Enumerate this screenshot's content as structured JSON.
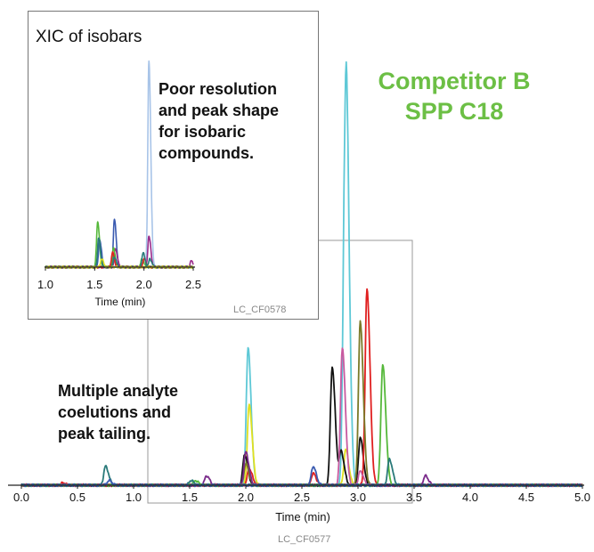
{
  "title": {
    "line1": "Competitor B",
    "line2": "SPP C18"
  },
  "annotation_main": {
    "lines": [
      "Multiple analyte",
      "coelutions and",
      "peak tailing."
    ]
  },
  "annotation_inset": {
    "lines": [
      "Poor resolution",
      "and peak shape",
      "for isobaric",
      "compounds."
    ]
  },
  "inset_title": "XIC of isobars",
  "inset_code": "LC_CF0578",
  "main_code": "LC_CF0577",
  "colors": {
    "accent": "#6cbf45"
  },
  "chart_data": [
    {
      "type": "line",
      "xlabel": "Time (min)",
      "xlim": [
        0,
        5.0
      ],
      "ylim": [
        0,
        100
      ],
      "x_ticks": [
        "0.0",
        "0.5",
        "1.0",
        "1.5",
        "2.0",
        "2.5",
        "3.0",
        "3.5",
        "4.0",
        "4.5",
        "5.0"
      ],
      "grid": false,
      "series": [
        {
          "color": "#5ec8d6",
          "peaks": [
            [
              2.02,
              58
            ],
            [
              2.88,
              100
            ],
            [
              2.9,
              97
            ]
          ]
        },
        {
          "color": "#e0e020",
          "peaks": [
            [
              2.03,
              34
            ],
            [
              2.89,
              15
            ]
          ]
        },
        {
          "color": "#111111",
          "peaks": [
            [
              2.77,
              50
            ],
            [
              2.85,
              14
            ],
            [
              3.02,
              20
            ],
            [
              1.99,
              13
            ]
          ]
        },
        {
          "color": "#e02020",
          "peaks": [
            [
              3.08,
              83
            ],
            [
              2.6,
              5
            ],
            [
              2.03,
              7
            ],
            [
              0.37,
              1
            ]
          ]
        },
        {
          "color": "#7a7a28",
          "peaks": [
            [
              3.02,
              69
            ],
            [
              2.0,
              9
            ]
          ]
        },
        {
          "color": "#c85aa0",
          "peaks": [
            [
              2.86,
              58
            ],
            [
              3.02,
              6
            ]
          ]
        },
        {
          "color": "#7a2a8a",
          "peaks": [
            [
              2.0,
              14
            ],
            [
              3.6,
              4
            ],
            [
              1.65,
              4
            ]
          ]
        },
        {
          "color": "#55b83a",
          "peaks": [
            [
              3.22,
              51
            ],
            [
              1.55,
              2
            ]
          ]
        },
        {
          "color": "#2a7a7a",
          "peaks": [
            [
              0.75,
              8
            ],
            [
              3.28,
              11
            ],
            [
              1.51,
              2
            ]
          ]
        },
        {
          "color": "#3a5ab0",
          "peaks": [
            [
              2.6,
              8
            ],
            [
              0.78,
              2
            ]
          ]
        }
      ]
    },
    {
      "type": "line",
      "title": "XIC of isobars",
      "xlabel": "Time (min)",
      "xlim": [
        1.0,
        2.5
      ],
      "ylim": [
        0,
        100
      ],
      "x_ticks": [
        "1.0",
        "1.5",
        "2.0",
        "2.5"
      ],
      "grid": false,
      "series": [
        {
          "color": "#a8c4e8",
          "peaks": [
            [
              2.05,
              100
            ]
          ]
        },
        {
          "color": "#3a5ab0",
          "peaks": [
            [
              1.7,
              23
            ],
            [
              1.55,
              13
            ]
          ]
        },
        {
          "color": "#9a2a8a",
          "peaks": [
            [
              2.05,
              15
            ],
            [
              1.71,
              9
            ],
            [
              2.48,
              3
            ]
          ]
        },
        {
          "color": "#55b83a",
          "peaks": [
            [
              1.53,
              22
            ],
            [
              1.69,
              9
            ],
            [
              1.98,
              4
            ]
          ]
        },
        {
          "color": "#e02020",
          "peaks": [
            [
              1.68,
              7
            ],
            [
              2.0,
              4
            ]
          ]
        },
        {
          "color": "#2a7a7a",
          "peaks": [
            [
              1.54,
              14
            ],
            [
              1.99,
              7
            ],
            [
              2.06,
              4
            ],
            [
              1.7,
              5
            ]
          ]
        },
        {
          "color": "#e0e020",
          "peaks": [
            [
              1.57,
              4
            ]
          ]
        }
      ]
    }
  ]
}
